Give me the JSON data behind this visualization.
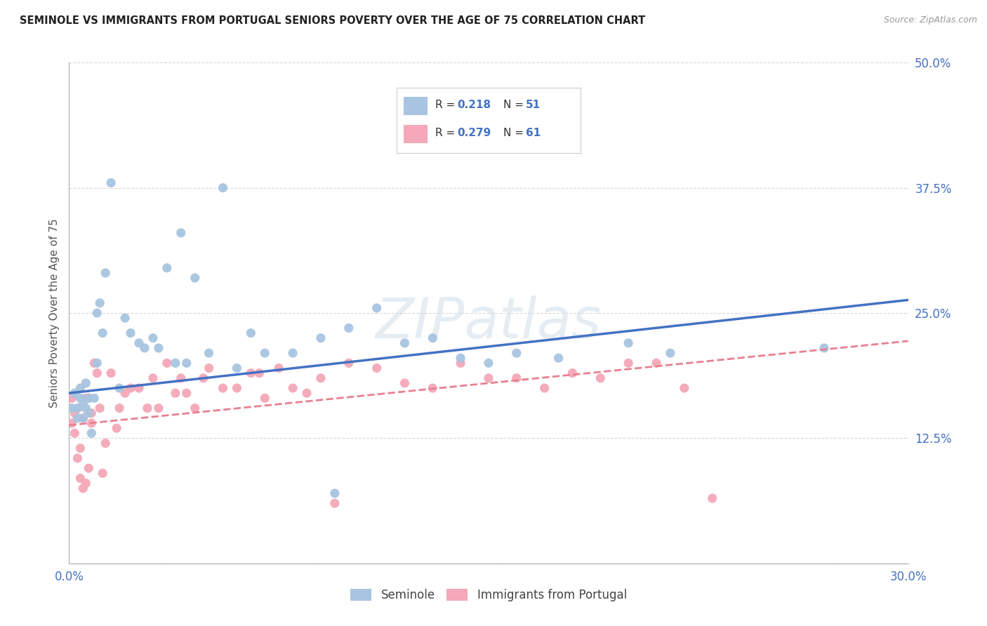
{
  "title": "SEMINOLE VS IMMIGRANTS FROM PORTUGAL SENIORS POVERTY OVER THE AGE OF 75 CORRELATION CHART",
  "source": "Source: ZipAtlas.com",
  "ylabel": "Seniors Poverty Over the Age of 75",
  "x_min": 0.0,
  "x_max": 0.3,
  "y_min": 0.0,
  "y_max": 0.5,
  "x_ticks": [
    0.0,
    0.05,
    0.1,
    0.15,
    0.2,
    0.25,
    0.3
  ],
  "y_ticks": [
    0.0,
    0.125,
    0.25,
    0.375,
    0.5
  ],
  "seminole_color": "#a8c4e0",
  "portugal_color": "#f4a8b8",
  "seminole_line_color": "#4472c4",
  "portugal_line_color": "#e88090",
  "R_seminole": 0.218,
  "N_seminole": 51,
  "R_portugal": 0.279,
  "N_portugal": 61,
  "sem_intercept": 0.17,
  "sem_slope": 0.31,
  "por_intercept": 0.138,
  "por_slope": 0.28,
  "seminole_x": [
    0.001,
    0.002,
    0.003,
    0.003,
    0.004,
    0.004,
    0.005,
    0.005,
    0.006,
    0.006,
    0.007,
    0.007,
    0.008,
    0.009,
    0.01,
    0.01,
    0.011,
    0.012,
    0.013,
    0.015,
    0.018,
    0.02,
    0.022,
    0.025,
    0.027,
    0.03,
    0.032,
    0.035,
    0.038,
    0.04,
    0.042,
    0.045,
    0.05,
    0.055,
    0.06,
    0.065,
    0.07,
    0.08,
    0.09,
    0.095,
    0.1,
    0.11,
    0.12,
    0.13,
    0.14,
    0.15,
    0.16,
    0.175,
    0.2,
    0.215,
    0.27
  ],
  "seminole_y": [
    0.155,
    0.17,
    0.155,
    0.145,
    0.165,
    0.175,
    0.16,
    0.145,
    0.155,
    0.18,
    0.15,
    0.165,
    0.13,
    0.165,
    0.25,
    0.2,
    0.26,
    0.23,
    0.29,
    0.38,
    0.175,
    0.245,
    0.23,
    0.22,
    0.215,
    0.225,
    0.215,
    0.295,
    0.2,
    0.33,
    0.2,
    0.285,
    0.21,
    0.375,
    0.195,
    0.23,
    0.21,
    0.21,
    0.225,
    0.07,
    0.235,
    0.255,
    0.22,
    0.225,
    0.205,
    0.2,
    0.21,
    0.205,
    0.22,
    0.21,
    0.215
  ],
  "portugal_x": [
    0.001,
    0.001,
    0.002,
    0.002,
    0.003,
    0.003,
    0.004,
    0.004,
    0.005,
    0.005,
    0.006,
    0.006,
    0.007,
    0.007,
    0.008,
    0.008,
    0.009,
    0.01,
    0.011,
    0.012,
    0.013,
    0.015,
    0.017,
    0.018,
    0.02,
    0.022,
    0.025,
    0.028,
    0.03,
    0.032,
    0.035,
    0.038,
    0.04,
    0.042,
    0.045,
    0.048,
    0.05,
    0.055,
    0.06,
    0.065,
    0.068,
    0.07,
    0.075,
    0.08,
    0.085,
    0.09,
    0.095,
    0.1,
    0.11,
    0.12,
    0.13,
    0.14,
    0.15,
    0.16,
    0.17,
    0.18,
    0.19,
    0.2,
    0.21,
    0.22,
    0.23
  ],
  "portugal_y": [
    0.14,
    0.165,
    0.15,
    0.13,
    0.155,
    0.105,
    0.085,
    0.115,
    0.145,
    0.075,
    0.165,
    0.08,
    0.165,
    0.095,
    0.15,
    0.14,
    0.2,
    0.19,
    0.155,
    0.09,
    0.12,
    0.19,
    0.135,
    0.155,
    0.17,
    0.175,
    0.175,
    0.155,
    0.185,
    0.155,
    0.2,
    0.17,
    0.185,
    0.17,
    0.155,
    0.185,
    0.195,
    0.175,
    0.175,
    0.19,
    0.19,
    0.165,
    0.195,
    0.175,
    0.17,
    0.185,
    0.06,
    0.2,
    0.195,
    0.18,
    0.175,
    0.2,
    0.185,
    0.185,
    0.175,
    0.19,
    0.185,
    0.2,
    0.2,
    0.175,
    0.065
  ],
  "watermark": "ZIPatlas",
  "background_color": "#ffffff",
  "grid_color": "#d8d8d8"
}
